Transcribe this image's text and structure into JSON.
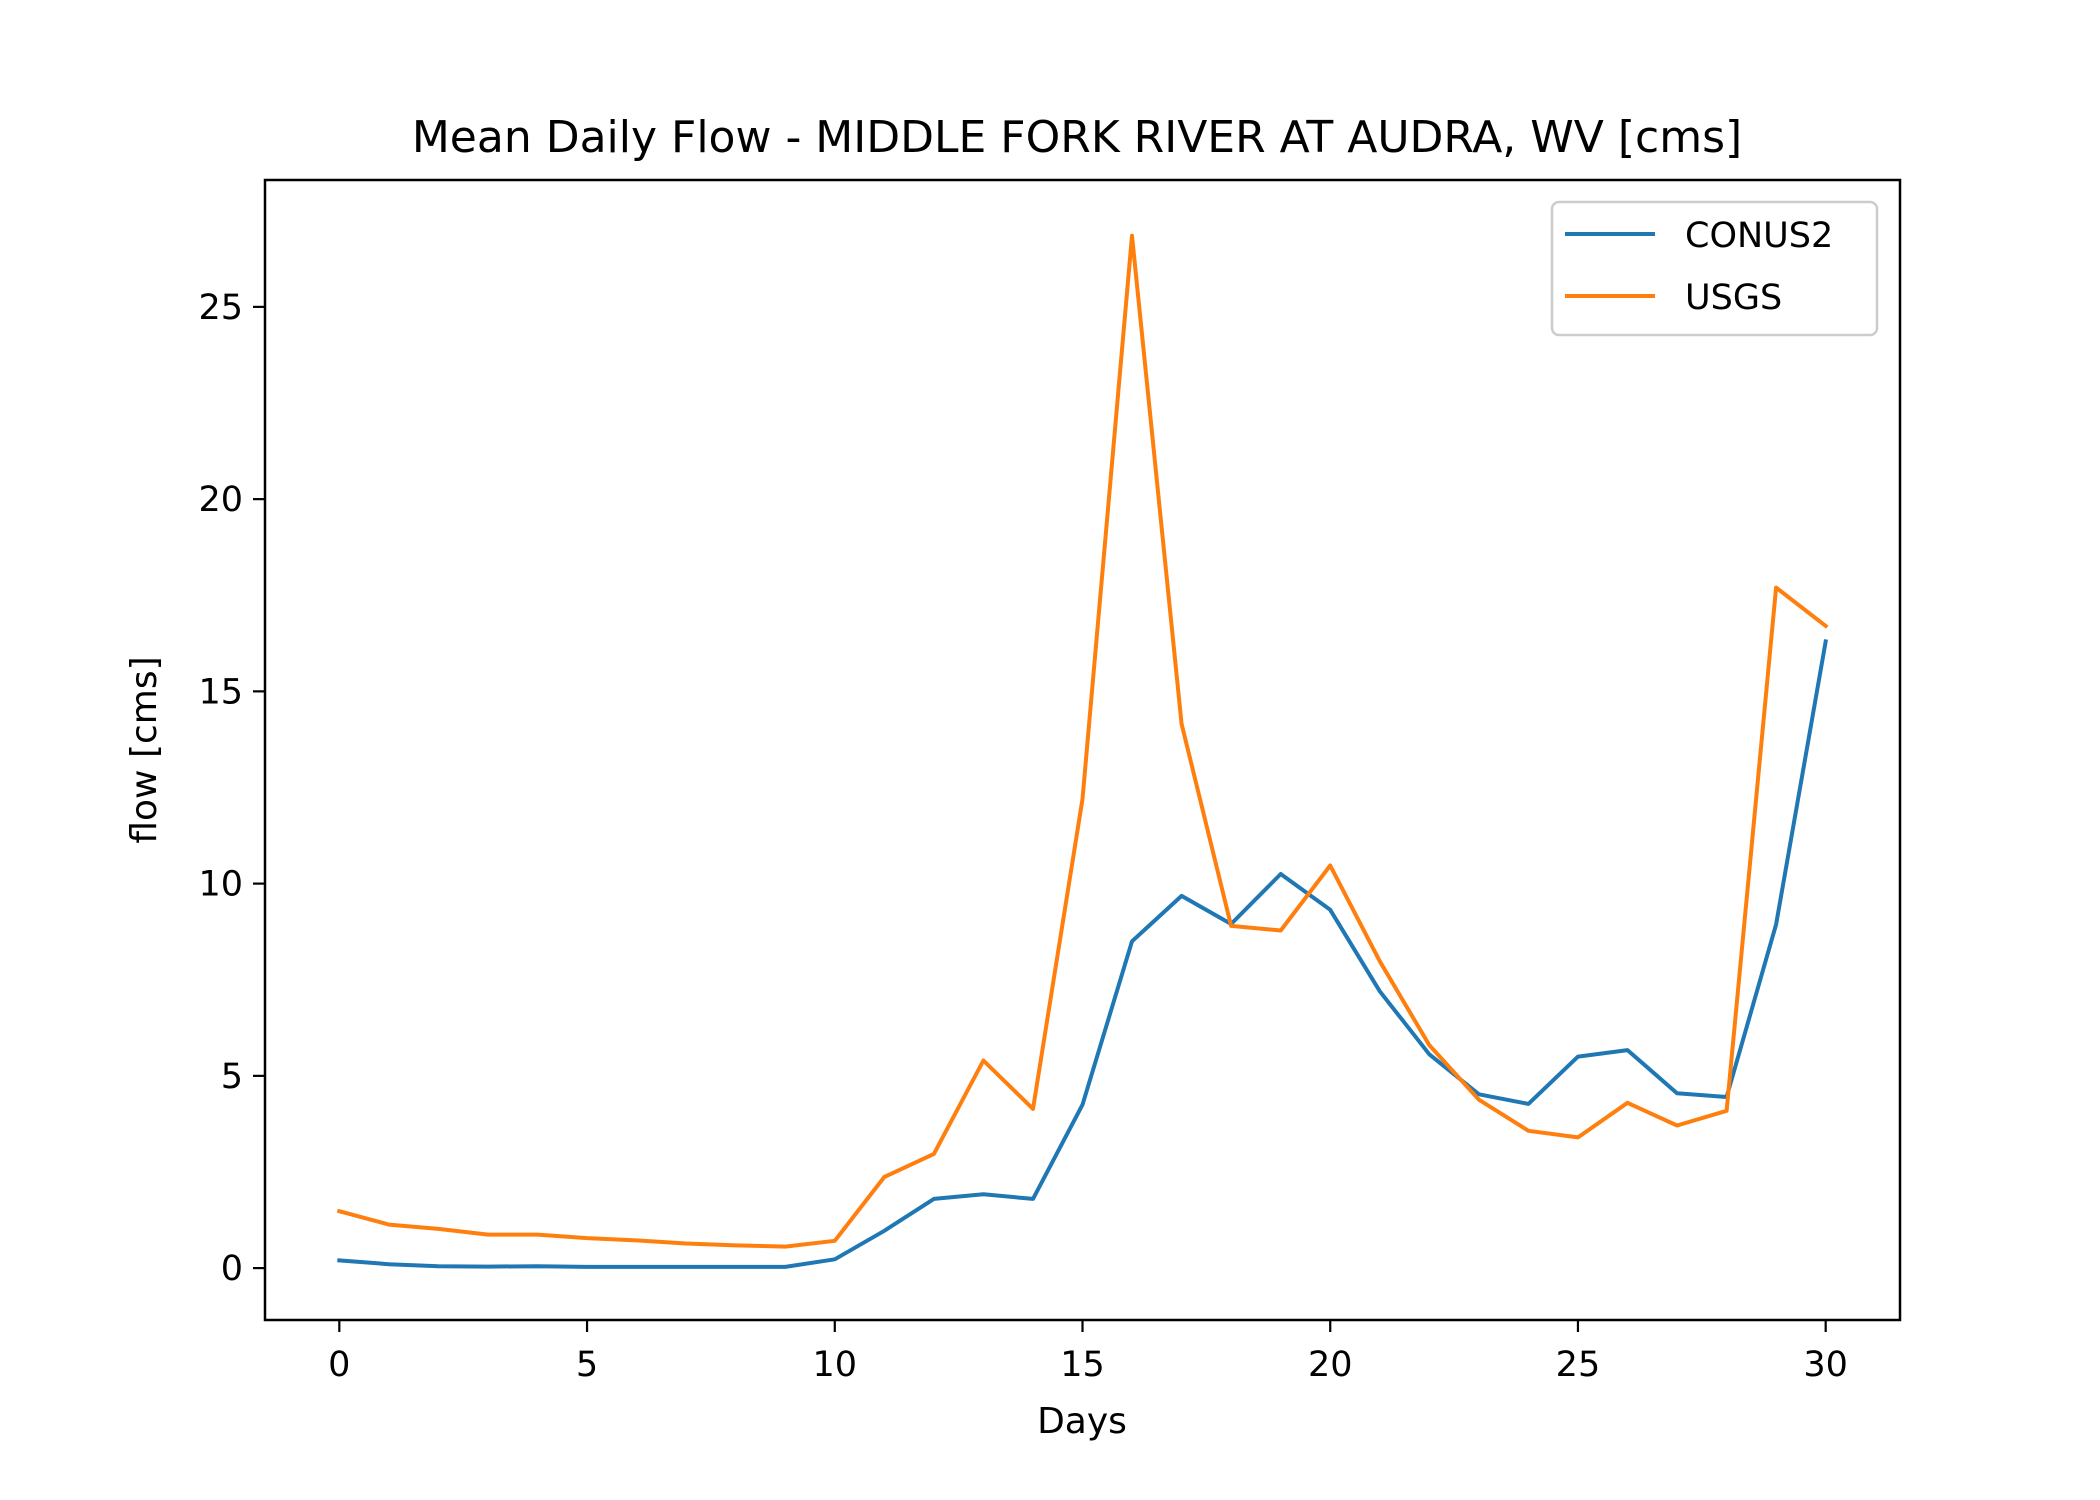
{
  "chart_data": {
    "type": "line",
    "title": "Mean Daily Flow - MIDDLE FORK RIVER AT AUDRA, WV [cms]",
    "xlabel": "Days",
    "ylabel": "flow [cms]",
    "xlim": [
      -1.5,
      31.5
    ],
    "ylim": [
      -1.35,
      28.3
    ],
    "xticks": [
      0,
      5,
      10,
      15,
      20,
      25,
      30
    ],
    "yticks": [
      0,
      5,
      10,
      15,
      20,
      25
    ],
    "grid": false,
    "legend_position": "top-right",
    "x": [
      0,
      1,
      2,
      3,
      4,
      5,
      6,
      7,
      8,
      9,
      10,
      11,
      12,
      13,
      14,
      15,
      16,
      17,
      18,
      19,
      20,
      21,
      22,
      23,
      24,
      25,
      26,
      27,
      28,
      29,
      30
    ],
    "series": [
      {
        "name": "CONUS2",
        "color": "#1f77b4",
        "values": [
          0.2,
          0.1,
          0.05,
          0.04,
          0.05,
          0.03,
          0.03,
          0.03,
          0.03,
          0.03,
          0.23,
          0.97,
          1.8,
          1.92,
          1.8,
          4.25,
          8.5,
          9.68,
          8.95,
          10.25,
          9.32,
          7.2,
          5.56,
          4.52,
          4.27,
          5.5,
          5.67,
          4.55,
          4.45,
          8.94,
          16.3
        ]
      },
      {
        "name": "USGS",
        "color": "#ff7f0e",
        "values": [
          1.48,
          1.13,
          1.02,
          0.87,
          0.87,
          0.78,
          0.72,
          0.64,
          0.59,
          0.56,
          0.71,
          2.37,
          2.97,
          5.4,
          4.14,
          12.2,
          26.85,
          14.15,
          8.9,
          8.78,
          10.47,
          7.98,
          5.8,
          4.38,
          3.57,
          3.4,
          4.3,
          3.71,
          4.09,
          17.7,
          16.7
        ]
      }
    ]
  }
}
